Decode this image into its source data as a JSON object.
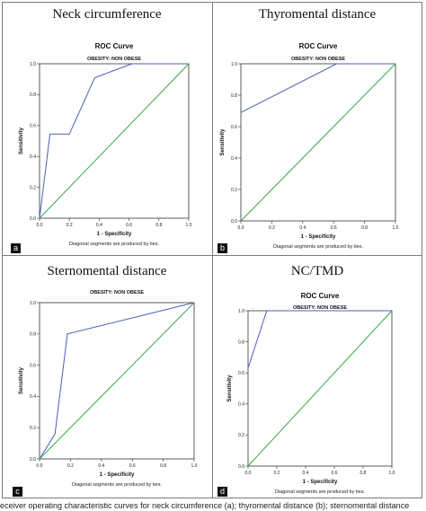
{
  "caption": "eceiver operating characteristic curves for neck circumference (a); thyromental distance (b); sternomental distance",
  "chart_data": [
    {
      "type": "line",
      "panel_label": "a",
      "panel_title": "Neck circumference",
      "title": "ROC Curve",
      "subtitle": "OBESITY: NON OBESE",
      "xlabel": "1 - Specificity",
      "ylabel": "Sensitivity",
      "footnote": "Diagonal segments are produced by ties.",
      "xlim": [
        0,
        1
      ],
      "ylim": [
        0,
        1
      ],
      "ticks": [
        "0.0",
        "0.2",
        "0.4",
        "0.6",
        "0.8",
        "1.0"
      ],
      "series": [
        {
          "color": "#4a5fb5",
          "x": [
            0,
            0.07,
            0.2,
            0.37,
            0.62,
            1.0
          ],
          "y": [
            0,
            0.545,
            0.545,
            0.91,
            1.0,
            1.0
          ]
        },
        {
          "color": "#3aa84a",
          "x": [
            0,
            1
          ],
          "y": [
            0,
            1
          ]
        }
      ]
    },
    {
      "type": "line",
      "panel_label": "b",
      "panel_title": "Thyromental distance",
      "title": "ROC Curve",
      "subtitle": "OBESITY: NON OBESE",
      "xlabel": "1 - Specificity",
      "ylabel": "Sensitivity",
      "footnote": "Diagonal segments are produced by ties.",
      "xlim": [
        0,
        1
      ],
      "ylim": [
        0,
        1
      ],
      "ticks": [
        "0.0",
        "0.2",
        "0.4",
        "0.6",
        "0.8",
        "1.0"
      ],
      "series": [
        {
          "color": "#4a5fb5",
          "x": [
            0,
            0.62,
            1.0
          ],
          "y": [
            0.69,
            1.0,
            1.0
          ]
        },
        {
          "color": "#3aa84a",
          "x": [
            0,
            1
          ],
          "y": [
            0,
            1
          ]
        }
      ]
    },
    {
      "type": "line",
      "panel_label": "c",
      "panel_title": "Sternomental distance",
      "title": "",
      "subtitle": "OBESITY: NON OBESE",
      "xlabel": "1 - Specificity",
      "ylabel": "Sensitivity",
      "footnote": "Diagonal segments are produced by ties.",
      "xlim": [
        0,
        1
      ],
      "ylim": [
        0,
        1
      ],
      "ticks": [
        "0.0",
        "0.2",
        "0.4",
        "0.6",
        "0.8",
        "1.0"
      ],
      "series": [
        {
          "color": "#4a5fb5",
          "x": [
            0,
            0.1,
            0.18,
            1.0
          ],
          "y": [
            0,
            0.16,
            0.8,
            1.0
          ]
        },
        {
          "color": "#3aa84a",
          "x": [
            0,
            1
          ],
          "y": [
            0,
            1
          ]
        }
      ]
    },
    {
      "type": "line",
      "panel_label": "d",
      "panel_title": "NC/TMD",
      "title": "ROC Curve",
      "subtitle": "OBESITY: NON OBESE",
      "xlabel": "1 - Specificity",
      "ylabel": "Sensitivity",
      "footnote": "Diagonal segments are produced by ties.",
      "xlim": [
        0,
        1
      ],
      "ylim": [
        0,
        1
      ],
      "ticks": [
        "0.0",
        "0.2",
        "0.4",
        "0.6",
        "0.8",
        "1.0"
      ],
      "series": [
        {
          "color": "#4a5fb5",
          "x": [
            0,
            0.07,
            0.13,
            1.0
          ],
          "y": [
            0.63,
            0.83,
            1.0,
            1.0
          ]
        },
        {
          "color": "#3aa84a",
          "x": [
            0,
            1
          ],
          "y": [
            0,
            1
          ]
        }
      ]
    }
  ]
}
